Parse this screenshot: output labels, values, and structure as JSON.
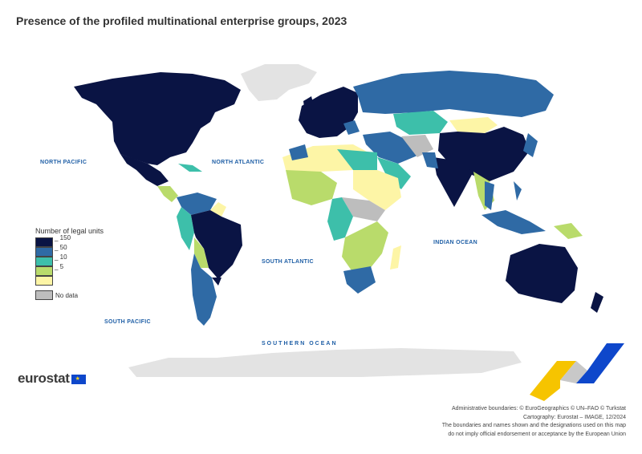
{
  "title": "Presence of the profiled multinational enterprise groups, 2023",
  "oceans": {
    "north_pacific": "NORTH PACIFIC",
    "north_atlantic": "NORTH ATLANTIC",
    "south_atlantic": "SOUTH ATLANTIC",
    "indian_ocean": "INDIAN OCEAN",
    "south_pacific": "SOUTH PACIFIC",
    "southern_ocean": "SOUTHERN OCEAN"
  },
  "legend": {
    "title": "Number of legal units",
    "classes": [
      {
        "label": "150",
        "color": "#0a1444"
      },
      {
        "label": "50",
        "color": "#2f6aa5"
      },
      {
        "label": "10",
        "color": "#3dbfaa"
      },
      {
        "label": "5",
        "color": "#b9db6b"
      },
      {
        "label": "",
        "color": "#fdf5a6"
      }
    ],
    "no_data_label": "No data",
    "no_data_color": "#bdbdbd"
  },
  "colors": {
    "c150": "#0a1444",
    "c50": "#2f6aa5",
    "c10": "#3dbfaa",
    "c5": "#b9db6b",
    "c1": "#fdf5a6",
    "nodata": "#bdbdbd",
    "land_outside": "#e3e3e3",
    "ocean_label": "#1f5fa6"
  },
  "brand": {
    "logo_text": "eurostat"
  },
  "credits": {
    "line1": "Administrative boundaries: © EuroGeographics © UN–FAO © Turkstat",
    "line2": "Cartography: Eurostat – IMAGE, 12/2024",
    "line3": "The boundaries and names shown and the designations used on this map",
    "line4": "do not imply official endorsement or acceptance by the European Union"
  }
}
